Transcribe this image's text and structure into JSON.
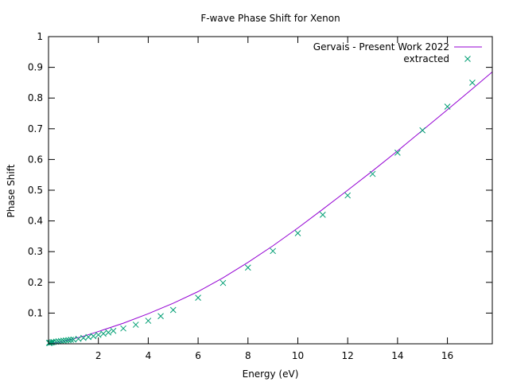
{
  "chart_data": {
    "type": "line",
    "title": "F-wave Phase Shift for Xenon",
    "xlabel": "Energy (eV)",
    "ylabel": "Phase Shift",
    "xlim": [
      0,
      17.8
    ],
    "ylim": [
      0,
      1
    ],
    "x_ticks": [
      2,
      4,
      6,
      8,
      10,
      12,
      14,
      16
    ],
    "x_tick_labels": [
      "2",
      "4",
      "6",
      "8",
      "10",
      "12",
      "14",
      "16"
    ],
    "y_ticks": [
      0.1,
      0.2,
      0.3,
      0.4,
      0.5,
      0.6,
      0.7,
      0.8,
      0.9,
      1
    ],
    "y_tick_labels": [
      "0.1",
      "0.2",
      "0.3",
      "0.4",
      "0.5",
      "0.6",
      "0.7",
      "0.8",
      "0.9",
      "1"
    ],
    "grid": false,
    "legend_position": "top-right",
    "series": [
      {
        "name": "Gervais - Present Work 2022",
        "style": "line",
        "color": "#9400d3",
        "x": [
          0,
          0.5,
          1,
          1.5,
          2,
          3,
          4,
          5,
          6,
          7,
          8,
          9,
          10,
          11,
          12,
          13,
          14,
          15,
          16,
          17,
          17.8
        ],
        "y": [
          0,
          0.006,
          0.016,
          0.027,
          0.04,
          0.067,
          0.098,
          0.132,
          0.17,
          0.215,
          0.265,
          0.319,
          0.377,
          0.438,
          0.5,
          0.563,
          0.628,
          0.695,
          0.762,
          0.83,
          0.885
        ]
      },
      {
        "name": "extracted",
        "style": "points",
        "marker": "x",
        "color": "#009e73",
        "x": [
          0.02,
          0.05,
          0.1,
          0.15,
          0.2,
          0.3,
          0.4,
          0.5,
          0.6,
          0.7,
          0.8,
          0.9,
          1.0,
          1.2,
          1.4,
          1.6,
          1.8,
          2.0,
          2.2,
          2.4,
          2.6,
          3,
          3.5,
          4,
          4.5,
          5,
          6,
          7,
          8,
          9,
          10,
          11,
          12,
          13,
          14,
          15,
          16,
          17
        ],
        "y": [
          0.003,
          0.003,
          0.004,
          0.005,
          0.006,
          0.007,
          0.008,
          0.009,
          0.01,
          0.011,
          0.012,
          0.013,
          0.014,
          0.016,
          0.019,
          0.022,
          0.025,
          0.029,
          0.033,
          0.037,
          0.042,
          0.05,
          0.062,
          0.075,
          0.09,
          0.11,
          0.15,
          0.198,
          0.248,
          0.302,
          0.36,
          0.42,
          0.483,
          0.553,
          0.622,
          0.695,
          0.772,
          0.85
        ]
      }
    ]
  }
}
